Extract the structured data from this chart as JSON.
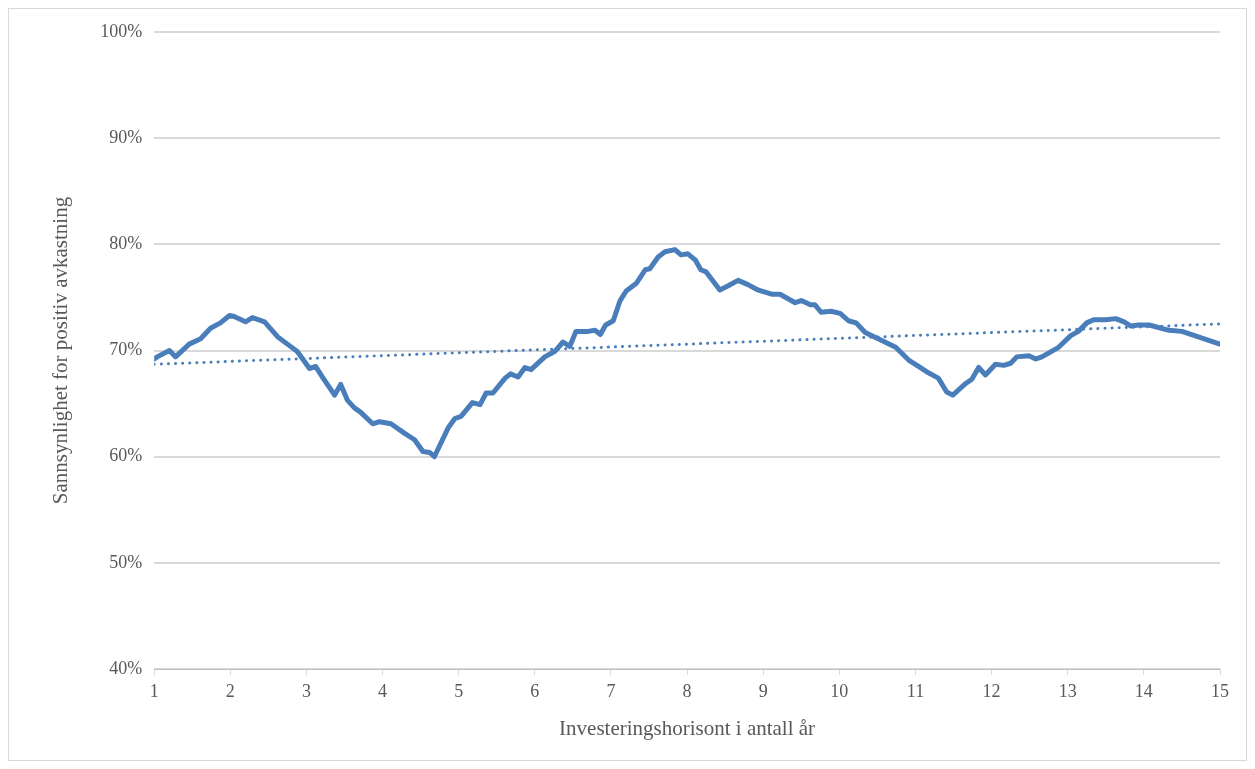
{
  "chart_data": {
    "type": "line",
    "xlabel": "Investeringshorisont i antall år",
    "ylabel": "Sannsynlighet for positiv avkastning",
    "xlim": [
      1,
      15
    ],
    "xticks": [
      1,
      2,
      3,
      4,
      5,
      6,
      7,
      8,
      9,
      10,
      11,
      12,
      13,
      14,
      15
    ],
    "ylim": [
      40,
      100
    ],
    "yticks": [
      {
        "value": 40,
        "label": "40%"
      },
      {
        "value": 50,
        "label": "50%"
      },
      {
        "value": 60,
        "label": "60%"
      },
      {
        "value": 70,
        "label": "70%"
      },
      {
        "value": 80,
        "label": "80%"
      },
      {
        "value": 90,
        "label": "90%"
      },
      {
        "value": 100,
        "label": "100%"
      }
    ],
    "grid": "y",
    "marker": "none",
    "series": [
      {
        "color": "#4a7ebb",
        "line_style": "solid",
        "x": [
          1,
          1.04,
          1.2,
          1.28,
          1.46,
          1.61,
          1.74,
          1.87,
          1.99,
          2.05,
          2.2,
          2.29,
          2.45,
          2.62,
          2.75,
          2.88,
          3.04,
          3.12,
          3.21,
          3.37,
          3.45,
          3.54,
          3.63,
          3.71,
          3.87,
          3.96,
          4.11,
          4.29,
          4.42,
          4.53,
          4.62,
          4.68,
          4.86,
          4.95,
          5.03,
          5.18,
          5.28,
          5.36,
          5.45,
          5.61,
          5.68,
          5.78,
          5.87,
          5.95,
          6.13,
          6.26,
          6.37,
          6.46,
          6.54,
          6.7,
          6.79,
          6.86,
          6.93,
          7.03,
          7.12,
          7.2,
          7.33,
          7.45,
          7.51,
          7.62,
          7.71,
          7.84,
          7.92,
          8.01,
          8.11,
          8.18,
          8.25,
          8.43,
          8.54,
          8.67,
          8.8,
          8.93,
          9.11,
          9.22,
          9.42,
          9.5,
          9.62,
          9.68,
          9.76,
          9.89,
          10.01,
          10.12,
          10.22,
          10.34,
          10.51,
          10.74,
          10.91,
          11.04,
          11.17,
          11.3,
          11.41,
          11.49,
          11.66,
          11.74,
          11.83,
          11.92,
          12.05,
          12.16,
          12.25,
          12.33,
          12.49,
          12.58,
          12.66,
          12.88,
          13.04,
          13.14,
          13.25,
          13.34,
          13.5,
          13.63,
          13.74,
          13.83,
          13.93,
          14.07,
          14.33,
          14.5,
          14.96,
          15
        ],
        "values": [
          69.2,
          69.4,
          70.0,
          69.4,
          70.6,
          71.1,
          72.1,
          72.6,
          73.3,
          73.2,
          72.7,
          73.1,
          72.7,
          71.3,
          70.6,
          69.9,
          68.3,
          68.5,
          67.5,
          65.8,
          66.8,
          65.3,
          64.6,
          64.2,
          63.1,
          63.3,
          63.1,
          62.2,
          61.6,
          60.5,
          60.4,
          60.0,
          62.7,
          63.6,
          63.8,
          65.1,
          64.9,
          66.0,
          66.0,
          67.4,
          67.8,
          67.5,
          68.4,
          68.2,
          69.4,
          69.9,
          70.8,
          70.4,
          71.8,
          71.8,
          71.9,
          71.5,
          72.4,
          72.8,
          74.7,
          75.6,
          76.3,
          77.6,
          77.7,
          78.8,
          79.3,
          79.5,
          79.0,
          79.1,
          78.5,
          77.6,
          77.4,
          75.7,
          76.1,
          76.6,
          76.2,
          75.7,
          75.3,
          75.3,
          74.5,
          74.7,
          74.3,
          74.3,
          73.6,
          73.7,
          73.5,
          72.8,
          72.6,
          71.7,
          71.1,
          70.3,
          69.1,
          68.5,
          67.9,
          67.4,
          66.1,
          65.8,
          66.9,
          67.3,
          68.4,
          67.7,
          68.7,
          68.6,
          68.8,
          69.4,
          69.5,
          69.2,
          69.4,
          70.3,
          71.4,
          71.8,
          72.6,
          72.9,
          72.9,
          73.0,
          72.7,
          72.3,
          72.4,
          72.4,
          71.9,
          71.8,
          70.7,
          70.6
        ]
      },
      {
        "color": "#4a7ebb",
        "line_style": "dotted",
        "x": [
          1,
          15
        ],
        "values": [
          68.7,
          72.5
        ]
      }
    ]
  }
}
